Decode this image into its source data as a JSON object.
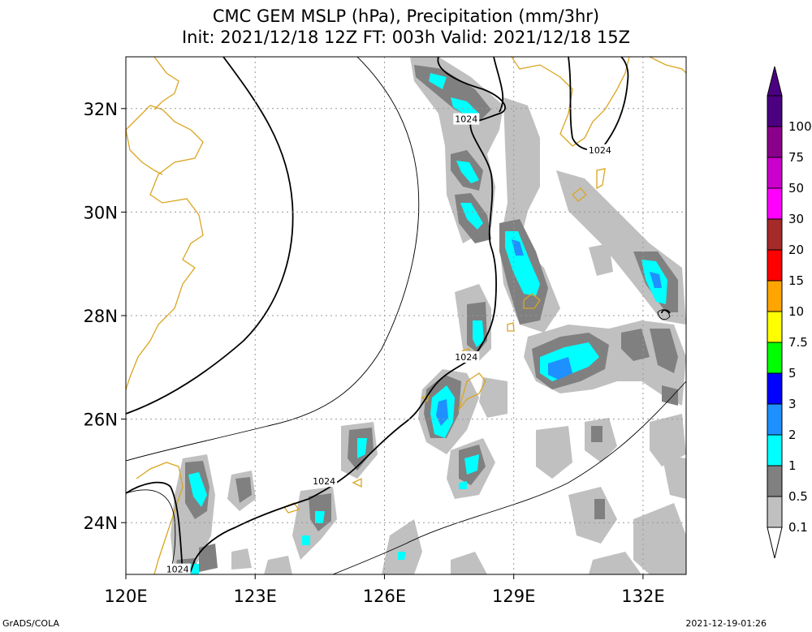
{
  "title": {
    "line1": "CMC GEM MSLP (hPa), Precipitation (mm/3hr)",
    "line2": "Init: 2021/12/18 12Z  FT: 003h  Valid: 2021/12/18 15Z"
  },
  "axes": {
    "lon_ticks": [
      {
        "value": 120,
        "label": "120E"
      },
      {
        "value": 123,
        "label": "123E"
      },
      {
        "value": 126,
        "label": "126E"
      },
      {
        "value": 129,
        "label": "129E"
      },
      {
        "value": 132,
        "label": "132E"
      }
    ],
    "lat_ticks": [
      {
        "value": 24,
        "label": "24N"
      },
      {
        "value": 26,
        "label": "26N"
      },
      {
        "value": 28,
        "label": "28N"
      },
      {
        "value": 30,
        "label": "30N"
      },
      {
        "value": 32,
        "label": "32N"
      }
    ],
    "lon_range": [
      120,
      133
    ],
    "lat_range": [
      23,
      33
    ],
    "grid": true
  },
  "isobar_labels": [
    {
      "text": "1024",
      "lon": 127.9,
      "lat": 31.8
    },
    {
      "text": "1024",
      "lon": 131.0,
      "lat": 31.2
    },
    {
      "text": "1024",
      "lon": 127.9,
      "lat": 27.2
    },
    {
      "text": "1024",
      "lon": 124.6,
      "lat": 24.8
    },
    {
      "text": "1024",
      "lon": 121.2,
      "lat": 23.1
    }
  ],
  "colorbar": {
    "levels": [
      {
        "label": "100",
        "color": "#4b0082"
      },
      {
        "label": "75",
        "color": "#8b008b"
      },
      {
        "label": "50",
        "color": "#cc00cc"
      },
      {
        "label": "30",
        "color": "#ff00ff"
      },
      {
        "label": "20",
        "color": "#a52a2a"
      },
      {
        "label": "15",
        "color": "#ff0000"
      },
      {
        "label": "10",
        "color": "#ffa500"
      },
      {
        "label": "7.5",
        "color": "#ffff00"
      },
      {
        "label": "5",
        "color": "#00ff00"
      },
      {
        "label": "3",
        "color": "#0000ff"
      },
      {
        "label": "2",
        "color": "#1e90ff"
      },
      {
        "label": "1",
        "color": "#00ffff"
      },
      {
        "label": "0.5",
        "color": "#808080"
      },
      {
        "label": "0.1",
        "color": "#c0c0c0"
      }
    ]
  },
  "footer": {
    "left": "GrADS/COLA",
    "right": "2021-12-19-01:26"
  }
}
